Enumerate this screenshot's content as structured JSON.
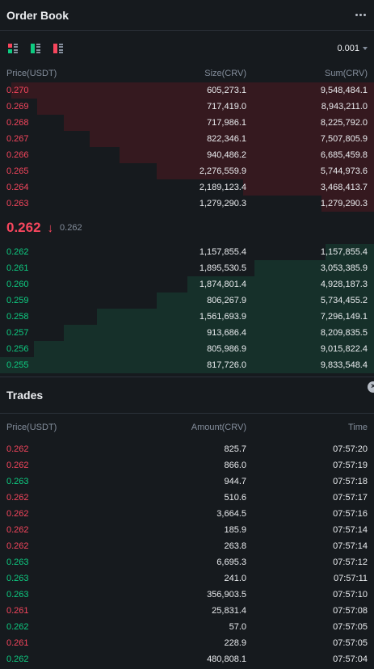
{
  "orderbook": {
    "title": "Order Book",
    "precision": "0.001",
    "columns": {
      "price": "Price(USDT)",
      "size": "Size(CRV)",
      "sum": "Sum(CRV)"
    },
    "asks": [
      {
        "price": "0.270",
        "size": "605,273.1",
        "sum": "9,548,484.1",
        "depth": 0.97
      },
      {
        "price": "0.269",
        "size": "717,419.0",
        "sum": "8,943,211.0",
        "depth": 0.9
      },
      {
        "price": "0.268",
        "size": "717,986.1",
        "sum": "8,225,792.0",
        "depth": 0.83
      },
      {
        "price": "0.267",
        "size": "822,346.1",
        "sum": "7,507,805.9",
        "depth": 0.76
      },
      {
        "price": "0.266",
        "size": "940,486.2",
        "sum": "6,685,459.8",
        "depth": 0.68
      },
      {
        "price": "0.265",
        "size": "2,276,559.9",
        "sum": "5,744,973.6",
        "depth": 0.58
      },
      {
        "price": "0.264",
        "size": "2,189,123.4",
        "sum": "3,468,413.7",
        "depth": 0.35
      },
      {
        "price": "0.263",
        "size": "1,279,290.3",
        "sum": "1,279,290.3",
        "depth": 0.14
      }
    ],
    "last_price": "0.262",
    "direction": "down",
    "mark_price": "0.262",
    "bids": [
      {
        "price": "0.262",
        "size": "1,157,855.4",
        "sum": "1,157,855.4",
        "depth": 0.13
      },
      {
        "price": "0.261",
        "size": "1,895,530.5",
        "sum": "3,053,385.9",
        "depth": 0.32
      },
      {
        "price": "0.260",
        "size": "1,874,801.4",
        "sum": "4,928,187.3",
        "depth": 0.5
      },
      {
        "price": "0.259",
        "size": "806,267.9",
        "sum": "5,734,455.2",
        "depth": 0.58
      },
      {
        "price": "0.258",
        "size": "1,561,693.9",
        "sum": "7,296,149.1",
        "depth": 0.74
      },
      {
        "price": "0.257",
        "size": "913,686.4",
        "sum": "8,209,835.5",
        "depth": 0.83
      },
      {
        "price": "0.256",
        "size": "805,986.9",
        "sum": "9,015,822.4",
        "depth": 0.91
      },
      {
        "price": "0.255",
        "size": "817,726.0",
        "sum": "9,833,548.4",
        "depth": 1.0
      }
    ]
  },
  "trades": {
    "title": "Trades",
    "columns": {
      "price": "Price(USDT)",
      "amount": "Amount(CRV)",
      "time": "Time"
    },
    "rows": [
      {
        "price": "0.262",
        "amount": "825.7",
        "time": "07:57:20",
        "side": "down"
      },
      {
        "price": "0.262",
        "amount": "866.0",
        "time": "07:57:19",
        "side": "down"
      },
      {
        "price": "0.263",
        "amount": "944.7",
        "time": "07:57:18",
        "side": "up"
      },
      {
        "price": "0.262",
        "amount": "510.6",
        "time": "07:57:17",
        "side": "down"
      },
      {
        "price": "0.262",
        "amount": "3,664.5",
        "time": "07:57:16",
        "side": "down"
      },
      {
        "price": "0.262",
        "amount": "185.9",
        "time": "07:57:14",
        "side": "down"
      },
      {
        "price": "0.262",
        "amount": "263.8",
        "time": "07:57:14",
        "side": "down"
      },
      {
        "price": "0.263",
        "amount": "6,695.3",
        "time": "07:57:12",
        "side": "up"
      },
      {
        "price": "0.263",
        "amount": "241.0",
        "time": "07:57:11",
        "side": "up"
      },
      {
        "price": "0.263",
        "amount": "356,903.5",
        "time": "07:57:10",
        "side": "up"
      },
      {
        "price": "0.261",
        "amount": "25,831.4",
        "time": "07:57:08",
        "side": "down"
      },
      {
        "price": "0.262",
        "amount": "57.0",
        "time": "07:57:05",
        "side": "up"
      },
      {
        "price": "0.261",
        "amount": "228.9",
        "time": "07:57:05",
        "side": "down"
      },
      {
        "price": "0.262",
        "amount": "480,808.1",
        "time": "07:57:04",
        "side": "up"
      }
    ]
  },
  "colors": {
    "ask": "#F6465D",
    "bid": "#0ECB81",
    "ask_bar": "#35191F",
    "bid_bar": "#16302A",
    "background": "#161A1E"
  }
}
